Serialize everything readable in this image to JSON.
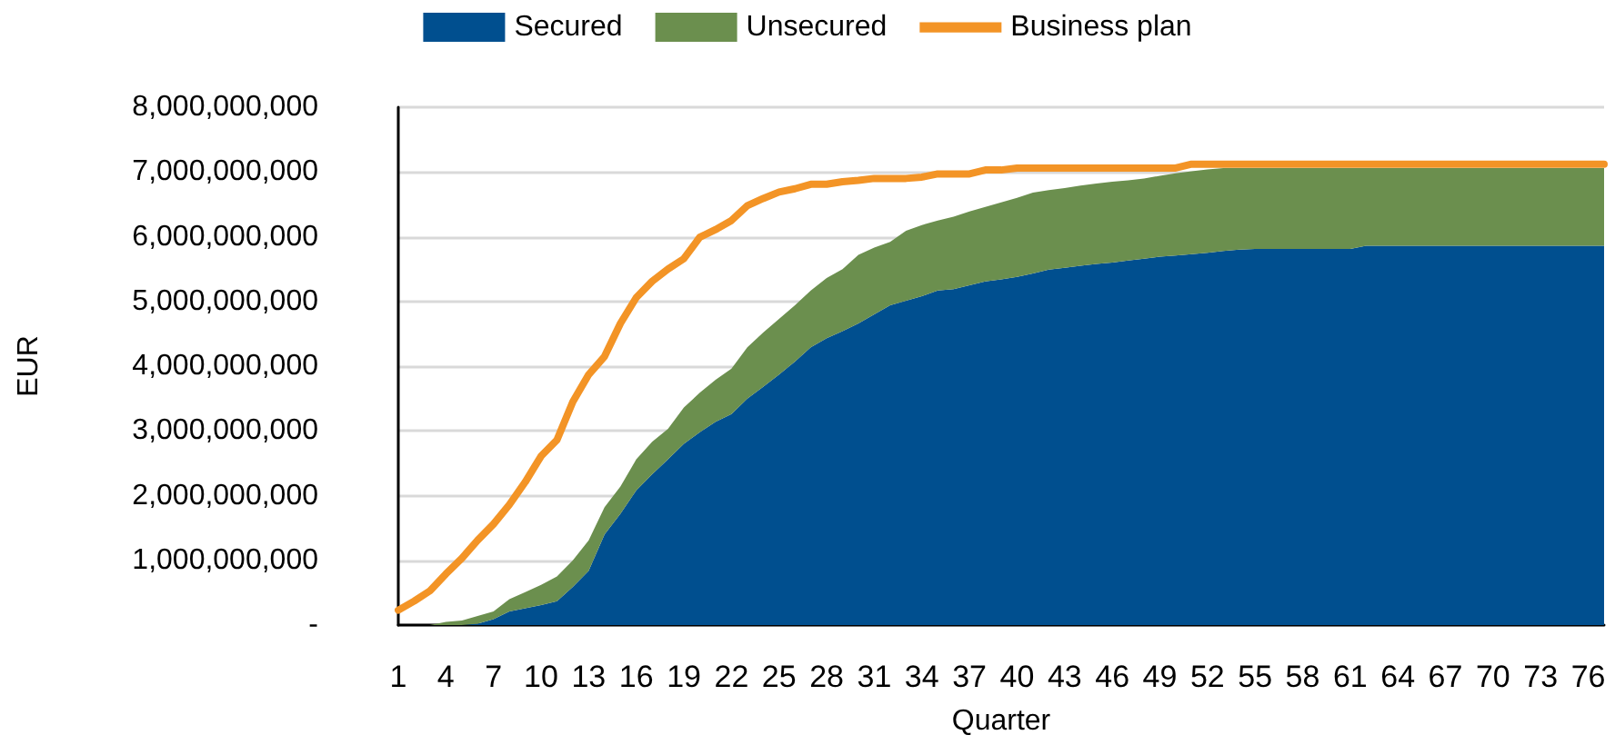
{
  "chart_data": {
    "type": "area",
    "stacked": true,
    "xlabel": "Quarter",
    "ylabel": "EUR",
    "legend": "top",
    "grid": "y",
    "categories": [
      "1",
      null,
      null,
      "4",
      null,
      null,
      "7",
      null,
      null,
      "10",
      null,
      null,
      "13",
      null,
      null,
      "16",
      null,
      null,
      "19",
      null,
      null,
      "22",
      null,
      null,
      "25",
      null,
      null,
      "28",
      null,
      null,
      "31",
      null,
      null,
      "34",
      null,
      null,
      "37",
      null,
      null,
      "40",
      null,
      null,
      "43",
      null,
      null,
      "46",
      null,
      null,
      "49",
      null,
      null,
      "52",
      null,
      null,
      "55",
      null,
      null,
      "58",
      null,
      null,
      "61",
      null,
      null,
      "64",
      null,
      null,
      "67",
      null,
      null,
      "70",
      null,
      null,
      "73",
      null,
      null,
      "76",
      null
    ],
    "ylim": [
      0,
      8000000000
    ],
    "yticks": [
      {
        "value": 0,
        "label": "-"
      },
      {
        "value": 1000000000,
        "label": "1,000,000,000"
      },
      {
        "value": 2000000000,
        "label": "2,000,000,000"
      },
      {
        "value": 3000000000,
        "label": "3,000,000,000"
      },
      {
        "value": 4000000000,
        "label": "4,000,000,000"
      },
      {
        "value": 5000000000,
        "label": "5,000,000,000"
      },
      {
        "value": 6000000000,
        "label": "6,000,000,000"
      },
      {
        "value": 7000000000,
        "label": "7,000,000,000"
      },
      {
        "value": 8000000000,
        "label": "8,000,000,000"
      }
    ],
    "series": [
      {
        "name": "Secured",
        "color": "#004f8f",
        "values": [
          0,
          0,
          0,
          0,
          0,
          20000000,
          90000000,
          210000000,
          260000000,
          310000000,
          370000000,
          590000000,
          840000000,
          1400000000,
          1720000000,
          2080000000,
          2330000000,
          2560000000,
          2800000000,
          2980000000,
          3140000000,
          3260000000,
          3500000000,
          3680000000,
          3870000000,
          4070000000,
          4290000000,
          4430000000,
          4540000000,
          4660000000,
          4800000000,
          4940000000,
          5010000000,
          5080000000,
          5170000000,
          5190000000,
          5250000000,
          5310000000,
          5340000000,
          5380000000,
          5430000000,
          5490000000,
          5520000000,
          5550000000,
          5580000000,
          5600000000,
          5630000000,
          5660000000,
          5690000000,
          5710000000,
          5730000000,
          5750000000,
          5780000000,
          5800000000,
          5810000000,
          5810000000,
          5810000000,
          5810000000,
          5810000000,
          5810000000,
          5810000000,
          5860000000,
          5860000000,
          5860000000,
          5860000000,
          5860000000,
          5860000000,
          5860000000,
          5860000000,
          5860000000,
          5860000000,
          5860000000,
          5860000000,
          5860000000,
          5860000000,
          5860000000,
          5860000000
        ]
      },
      {
        "name": "Unsecured",
        "color": "#6b8f4e",
        "values": [
          0,
          0,
          0,
          50000000,
          70000000,
          120000000,
          120000000,
          190000000,
          250000000,
          310000000,
          380000000,
          410000000,
          470000000,
          420000000,
          420000000,
          480000000,
          500000000,
          470000000,
          560000000,
          610000000,
          650000000,
          700000000,
          790000000,
          840000000,
          860000000,
          870000000,
          880000000,
          930000000,
          960000000,
          1060000000,
          1030000000,
          980000000,
          1080000000,
          1100000000,
          1080000000,
          1120000000,
          1140000000,
          1150000000,
          1190000000,
          1220000000,
          1250000000,
          1230000000,
          1230000000,
          1240000000,
          1240000000,
          1250000000,
          1240000000,
          1240000000,
          1250000000,
          1270000000,
          1280000000,
          1290000000,
          1280000000,
          1260000000,
          1250000000,
          1250000000,
          1250000000,
          1250000000,
          1250000000,
          1250000000,
          1250000000,
          1200000000,
          1200000000,
          1200000000,
          1200000000,
          1200000000,
          1200000000,
          1200000000,
          1200000000,
          1200000000,
          1200000000,
          1200000000,
          1200000000,
          1200000000,
          1200000000,
          1200000000,
          1200000000
        ]
      },
      {
        "name": "Business plan",
        "type": "line",
        "color": "#f39426",
        "values": [
          230000000,
          370000000,
          530000000,
          790000000,
          1030000000,
          1310000000,
          1560000000,
          1860000000,
          2210000000,
          2610000000,
          2860000000,
          3450000000,
          3870000000,
          4150000000,
          4660000000,
          5060000000,
          5310000000,
          5500000000,
          5660000000,
          5990000000,
          6110000000,
          6250000000,
          6480000000,
          6590000000,
          6690000000,
          6740000000,
          6810000000,
          6810000000,
          6850000000,
          6870000000,
          6900000000,
          6900000000,
          6900000000,
          6920000000,
          6970000000,
          6970000000,
          6970000000,
          7030000000,
          7030000000,
          7060000000,
          7060000000,
          7060000000,
          7060000000,
          7060000000,
          7060000000,
          7060000000,
          7060000000,
          7060000000,
          7060000000,
          7060000000,
          7120000000,
          7120000000,
          7120000000,
          7120000000,
          7120000000,
          7120000000,
          7120000000,
          7120000000,
          7120000000,
          7120000000,
          7120000000,
          7120000000,
          7120000000,
          7120000000,
          7120000000,
          7120000000,
          7120000000,
          7120000000,
          7120000000,
          7120000000,
          7120000000,
          7120000000,
          7120000000,
          7120000000,
          7120000000,
          7120000000,
          7120000000
        ]
      }
    ]
  }
}
